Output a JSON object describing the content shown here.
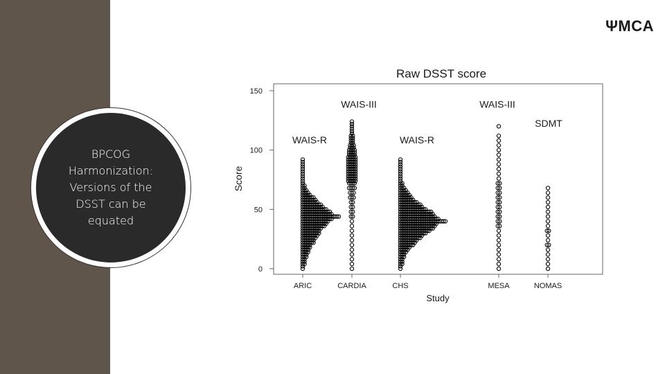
{
  "logo": "ΨMCA",
  "callout": "BPCOG Harmonization: Versions of the DSST can be equated",
  "colors": {
    "sidebar": "#5f554a",
    "disc": "#2a2a2a",
    "marker": "#000000"
  },
  "chart_data": {
    "type": "scatter",
    "title": "Raw DSST score",
    "xlabel": "Study",
    "ylabel": "Score",
    "ylim": [
      0,
      150
    ],
    "yticks": [
      0,
      50,
      100,
      150
    ],
    "categories": [
      "ARIC",
      "CARDIA",
      "CHS",
      "MESA",
      "NOMAS"
    ],
    "grid": false,
    "annotations": [
      {
        "text": "WAIS-R",
        "category": "ARIC",
        "y": 108
      },
      {
        "text": "WAIS-III",
        "category": "CARDIA",
        "y": 138
      },
      {
        "text": "WAIS-R",
        "category": "CHS",
        "y": 108
      },
      {
        "text": "WAIS-III",
        "category": "MESA",
        "y": 138
      },
      {
        "text": "SDMT",
        "category": "NOMAS",
        "y": 122
      }
    ],
    "series": [
      {
        "category": "ARIC",
        "side": "right",
        "y": [
          0,
          2,
          4,
          6,
          8,
          10,
          12,
          14,
          16,
          18,
          20,
          22,
          24,
          26,
          28,
          30,
          32,
          34,
          36,
          38,
          40,
          42,
          44,
          46,
          48,
          50,
          52,
          54,
          56,
          58,
          60,
          62,
          64,
          66,
          68,
          70,
          72,
          74,
          76,
          78,
          80,
          82,
          84,
          86,
          88,
          90,
          92
        ],
        "counts": [
          1,
          1,
          2,
          2,
          2,
          3,
          3,
          4,
          4,
          5,
          5,
          7,
          7,
          8,
          9,
          10,
          10,
          11,
          13,
          14,
          15,
          17,
          21,
          17,
          16,
          14,
          12,
          11,
          9,
          8,
          7,
          5,
          4,
          3,
          2,
          2,
          1,
          1,
          1,
          1,
          1,
          1,
          1,
          1,
          1,
          1,
          1
        ]
      },
      {
        "category": "CARDIA",
        "side": "both",
        "y": [
          0,
          4,
          8,
          12,
          16,
          20,
          24,
          28,
          32,
          36,
          40,
          44,
          48,
          52,
          56,
          60,
          64,
          68,
          72,
          74,
          76,
          78,
          80,
          82,
          84,
          86,
          88,
          90,
          92,
          94,
          96,
          98,
          100,
          102,
          104,
          106,
          108,
          110,
          112,
          114,
          116,
          118,
          120,
          122,
          124
        ],
        "counts": [
          1,
          1,
          1,
          1,
          1,
          1,
          1,
          1,
          1,
          1,
          1,
          2,
          2,
          2,
          2,
          3,
          3,
          4,
          4,
          5,
          5,
          5,
          5,
          5,
          5,
          5,
          5,
          5,
          5,
          5,
          4,
          4,
          4,
          3,
          3,
          2,
          2,
          2,
          2,
          1,
          1,
          1,
          1,
          1,
          1
        ]
      },
      {
        "category": "CHS",
        "side": "right",
        "y": [
          0,
          2,
          4,
          6,
          8,
          10,
          12,
          14,
          16,
          18,
          20,
          22,
          24,
          26,
          28,
          30,
          32,
          34,
          36,
          38,
          40,
          42,
          44,
          46,
          48,
          50,
          52,
          54,
          56,
          58,
          60,
          62,
          64,
          66,
          68,
          70,
          72,
          74,
          76,
          78,
          80,
          82,
          84,
          86,
          88,
          90,
          92
        ],
        "counts": [
          1,
          1,
          2,
          2,
          2,
          3,
          3,
          4,
          5,
          6,
          8,
          9,
          10,
          12,
          13,
          15,
          17,
          19,
          20,
          21,
          26,
          22,
          20,
          19,
          18,
          15,
          13,
          12,
          10,
          8,
          7,
          6,
          5,
          4,
          3,
          2,
          2,
          1,
          1,
          1,
          1,
          1,
          1,
          1,
          1,
          1,
          1
        ]
      },
      {
        "category": "MESA",
        "side": "both",
        "y": [
          0,
          4,
          8,
          12,
          16,
          20,
          24,
          28,
          32,
          36,
          40,
          44,
          48,
          52,
          56,
          60,
          64,
          68,
          72,
          76,
          80,
          84,
          88,
          92,
          96,
          100,
          104,
          108,
          112,
          120
        ],
        "counts": [
          1,
          1,
          1,
          1,
          1,
          1,
          1,
          1,
          1,
          2,
          2,
          2,
          2,
          2,
          2,
          2,
          2,
          2,
          2,
          1,
          1,
          1,
          1,
          1,
          1,
          1,
          1,
          1,
          1,
          1
        ]
      },
      {
        "category": "NOMAS",
        "side": "both",
        "y": [
          0,
          4,
          8,
          12,
          16,
          20,
          24,
          28,
          32,
          36,
          40,
          44,
          48,
          52,
          56,
          60,
          64,
          68
        ],
        "counts": [
          1,
          1,
          1,
          1,
          1,
          2,
          1,
          1,
          2,
          1,
          1,
          1,
          1,
          1,
          1,
          1,
          1,
          1
        ]
      }
    ]
  }
}
